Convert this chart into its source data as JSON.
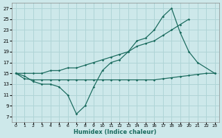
{
  "xlabel": "Humidex (Indice chaleur)",
  "bg_color": "#cde8ea",
  "grid_color": "#afd4d6",
  "line_color": "#1a6b5e",
  "xlim": [
    -0.5,
    23.5
  ],
  "ylim": [
    6,
    28
  ],
  "yticks": [
    7,
    9,
    11,
    13,
    15,
    17,
    19,
    21,
    23,
    25,
    27
  ],
  "xticks": [
    0,
    1,
    2,
    3,
    4,
    5,
    6,
    7,
    8,
    9,
    10,
    11,
    12,
    13,
    14,
    15,
    16,
    17,
    18,
    19,
    20,
    21,
    22,
    23
  ],
  "line1_x": [
    0,
    1,
    2,
    3,
    4,
    5,
    6,
    7,
    8,
    9,
    10,
    11,
    12,
    13,
    14,
    15,
    16,
    17,
    18,
    19,
    20,
    21,
    23
  ],
  "line1_y": [
    15,
    14.5,
    13.5,
    13,
    13,
    12.5,
    11,
    7.5,
    9,
    12.5,
    15.5,
    17,
    17.5,
    19,
    21,
    21.5,
    23,
    25.5,
    27,
    22.5,
    19,
    17,
    15
  ],
  "line2_x": [
    0,
    1,
    2,
    3,
    4,
    5,
    6,
    7,
    8,
    9,
    10,
    11,
    12,
    13,
    14,
    15,
    16,
    17,
    18,
    19,
    20
  ],
  "line2_y": [
    15,
    15,
    15,
    15,
    15.5,
    15.5,
    16,
    16,
    16.5,
    17,
    17.5,
    18,
    18.5,
    19,
    20,
    20.5,
    21,
    22,
    23,
    24,
    25
  ],
  "line3_x": [
    0,
    1,
    2,
    3,
    4,
    5,
    6,
    7,
    8,
    9,
    10,
    11,
    12,
    13,
    14,
    15,
    16,
    17,
    18,
    19,
    20,
    21,
    22,
    23
  ],
  "line3_y": [
    15,
    14,
    13.8,
    13.8,
    13.8,
    13.8,
    13.8,
    13.8,
    13.8,
    13.8,
    13.8,
    13.8,
    13.8,
    13.8,
    13.8,
    13.8,
    13.8,
    14,
    14.2,
    14.4,
    14.6,
    14.8,
    15,
    15
  ]
}
